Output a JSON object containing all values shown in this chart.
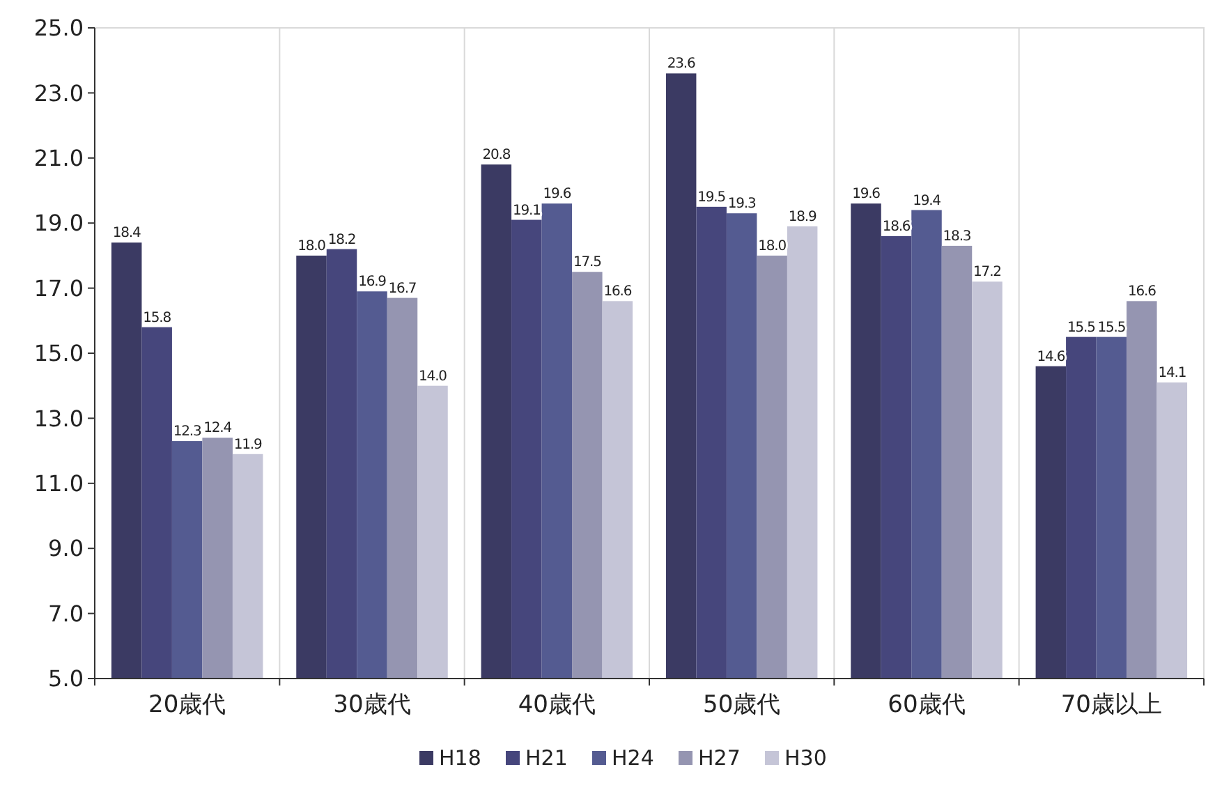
{
  "chart_data": {
    "type": "bar",
    "categories": [
      "20歳代",
      "30歳代",
      "40歳代",
      "50歳代",
      "60歳代",
      "70歳以上"
    ],
    "series": [
      {
        "name": "H18",
        "color": "#3b3a63",
        "values": [
          18.4,
          18.0,
          20.8,
          23.6,
          19.6,
          14.6
        ],
        "value_labels": [
          "18.4",
          "18.0",
          "20.8",
          "23.6",
          "19.6",
          "14.6"
        ]
      },
      {
        "name": "H21",
        "color": "#46467c",
        "values": [
          15.8,
          18.2,
          19.1,
          19.5,
          18.6,
          15.5
        ],
        "value_labels": [
          "15.8",
          "18.2",
          "19.1",
          "19.5",
          "18.6",
          "15.5"
        ]
      },
      {
        "name": "H24",
        "color": "#545b91",
        "values": [
          12.3,
          16.9,
          19.6,
          19.3,
          19.4,
          15.5
        ],
        "value_labels": [
          "12.3",
          "16.9",
          "19.6",
          "19.3",
          "19.4",
          "15.5"
        ]
      },
      {
        "name": "H27",
        "color": "#9595b1",
        "values": [
          12.4,
          16.7,
          17.5,
          18.0,
          18.3,
          16.6
        ],
        "value_labels": [
          "12.4",
          "16.7",
          "17.5",
          "18.0",
          "18.3",
          "16.6"
        ]
      },
      {
        "name": "H30",
        "color": "#c5c5d7",
        "values": [
          11.9,
          14.0,
          16.6,
          18.9,
          17.2,
          14.1
        ],
        "value_labels": [
          "11.9",
          "14.0",
          "16.6",
          "18.9",
          "17.2",
          "14.1"
        ]
      }
    ],
    "ylim": [
      5,
      25
    ],
    "yticks": [
      {
        "value": 5,
        "label": "5.0"
      },
      {
        "value": 7,
        "label": "7.0"
      },
      {
        "value": 9,
        "label": "9.0"
      },
      {
        "value": 11,
        "label": "11.0"
      },
      {
        "value": 13,
        "label": "13.0"
      },
      {
        "value": 15,
        "label": "15.0"
      },
      {
        "value": 17,
        "label": "17.0"
      },
      {
        "value": 19,
        "label": "19.0"
      },
      {
        "value": 21,
        "label": "21.0"
      },
      {
        "value": 23,
        "label": "23.0"
      },
      {
        "value": 25,
        "label": "25.0"
      }
    ],
    "grid": "x",
    "legend": "bottom"
  }
}
